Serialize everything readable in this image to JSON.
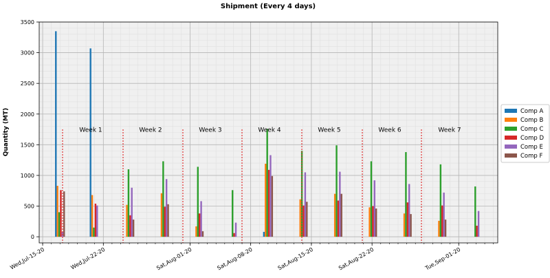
{
  "chart_data": {
    "type": "bar",
    "title": "Shipment (Every 4 days)",
    "xlabel": "",
    "ylabel": "Quantity (MT)",
    "ylim": [
      -100,
      3500
    ],
    "yticks": [
      0,
      500,
      1000,
      1500,
      2000,
      2500,
      3000,
      3500
    ],
    "x_tick_labels": [
      "Wed,Jul-15-20",
      "Wed,Jul-22-20",
      "Sat,Aug-01-20",
      "Sat,Aug-08-20",
      "Sat,Aug-15-20",
      "Sat,Aug-22-20",
      "Tue,Sep-01-20"
    ],
    "x_tick_days": [
      0,
      7,
      17,
      24,
      31,
      38,
      48
    ],
    "x_range_days": [
      -0.4,
      52.5
    ],
    "grid": true,
    "legend_position": "right",
    "categories": [
      "Jul-17",
      "Jul-21",
      "Jul-25",
      "Jul-29",
      "Aug-02",
      "Aug-06",
      "Aug-10",
      "Aug-14",
      "Aug-18",
      "Aug-22",
      "Aug-26",
      "Aug-30",
      "Sep-03"
    ],
    "category_days": [
      2,
      6,
      10,
      14,
      18,
      22,
      26,
      30,
      34,
      38,
      42,
      46,
      50
    ],
    "series": [
      {
        "name": "Comp A",
        "color": "#1f77b4",
        "values": [
          3350,
          3070,
          0,
          0,
          0,
          0,
          80,
          0,
          0,
          0,
          0,
          0,
          0
        ]
      },
      {
        "name": "Comp B",
        "color": "#ff7f0e",
        "values": [
          830,
          680,
          520,
          710,
          170,
          0,
          1190,
          610,
          700,
          480,
          380,
          260,
          0
        ]
      },
      {
        "name": "Comp C",
        "color": "#2ca02c",
        "values": [
          400,
          150,
          1100,
          1230,
          1140,
          760,
          1760,
          1400,
          1490,
          1230,
          1380,
          1180,
          820
        ]
      },
      {
        "name": "Comp D",
        "color": "#d62728",
        "values": [
          760,
          540,
          350,
          490,
          380,
          60,
          1090,
          510,
          590,
          500,
          560,
          510,
          180
        ]
      },
      {
        "name": "Comp E",
        "color": "#9467bd",
        "values": [
          80,
          510,
          800,
          940,
          580,
          230,
          1330,
          1050,
          1060,
          920,
          860,
          720,
          420
        ]
      },
      {
        "name": "Comp F",
        "color": "#8c564b",
        "values": [
          740,
          0,
          280,
          530,
          90,
          0,
          990,
          570,
          700,
          460,
          370,
          280,
          0
        ]
      }
    ],
    "week_dividers_days": [
      3.4,
      13.3,
      23.2,
      33.2,
      43.1,
      53.0,
      62.9
    ],
    "week_labels": [
      "Week 1",
      "Week 2",
      "Week 3",
      "Week 4",
      "Week 5",
      "Week 6",
      "Week 7"
    ],
    "week_label_days": [
      8.1,
      18.0,
      27.9,
      37.8,
      47.7,
      57.6,
      67.5
    ]
  }
}
